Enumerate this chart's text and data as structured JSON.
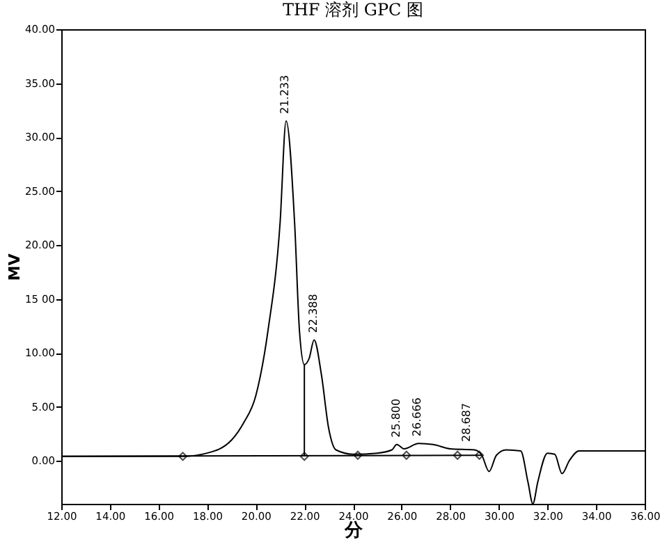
{
  "chart_data": {
    "type": "line",
    "title": "THF 溶剂 GPC 图",
    "xlabel": "分",
    "ylabel": "MV",
    "xlim": [
      12,
      36
    ],
    "ylim": [
      -4,
      40
    ],
    "xticks": [
      {
        "value": 12,
        "label": "12.00"
      },
      {
        "value": 14,
        "label": "14.00"
      },
      {
        "value": 16,
        "label": "16.00"
      },
      {
        "value": 18,
        "label": "18.00"
      },
      {
        "value": 20,
        "label": "20.00"
      },
      {
        "value": 22,
        "label": "22.00"
      },
      {
        "value": 24,
        "label": "24.00"
      },
      {
        "value": 26,
        "label": "26.00"
      },
      {
        "value": 28,
        "label": "28.00"
      },
      {
        "value": 30,
        "label": "30.00"
      },
      {
        "value": 32,
        "label": "32.00"
      },
      {
        "value": 34,
        "label": "34.00"
      },
      {
        "value": 36,
        "label": "36.00"
      }
    ],
    "yticks": [
      {
        "value": 0,
        "label": "0.00"
      },
      {
        "value": 5,
        "label": "5.00"
      },
      {
        "value": 10,
        "label": "10.00"
      },
      {
        "value": 15,
        "label": "15 00"
      },
      {
        "value": 20,
        "label": "20.00"
      },
      {
        "value": 25,
        "label": "25.00"
      },
      {
        "value": 30,
        "label": "30.00"
      },
      {
        "value": 35,
        "label": "35.00"
      },
      {
        "value": 40,
        "label": "40.00"
      }
    ],
    "grid": false,
    "series": [
      {
        "color": "#000000",
        "x": [
          12,
          17,
          18,
          19,
          19.5,
          20,
          20.5,
          21,
          21.25,
          21.6,
          21.8,
          22.0,
          22.2,
          22.4,
          22.7,
          23.0,
          23.3,
          24,
          25,
          25.6,
          25.8,
          26.1,
          26.7,
          27.3,
          28,
          29,
          29.3,
          29.6,
          29.9,
          30.3,
          30.9,
          31.2,
          31.4,
          31.6,
          32,
          32.3,
          32.6,
          32.9,
          33.3,
          36
        ],
        "values": [
          0.4,
          0.4,
          0.7,
          1.9,
          3.5,
          6,
          12,
          22,
          31.5,
          22,
          12,
          8.9,
          9.5,
          11.2,
          8,
          3,
          1,
          0.6,
          0.7,
          1,
          1.5,
          1.1,
          1.6,
          1.5,
          1.1,
          1.0,
          0.5,
          -1,
          0.5,
          1.0,
          0.9,
          -2,
          -4,
          -2,
          0.7,
          0.6,
          -1.2,
          0,
          0.9,
          0.9
        ]
      },
      {
        "type": "line",
        "color": "#000000",
        "x": [
          12,
          29.3
        ],
        "values": [
          0.4,
          0.5
        ]
      },
      {
        "type": "line",
        "color": "#000000",
        "x": [
          22,
          22
        ],
        "values": [
          0.4,
          8.9
        ]
      },
      {
        "type": "scatter",
        "color": "#000000",
        "marker": "diamond",
        "x": [
          17,
          22,
          24.2,
          26.2,
          28.3,
          29.2
        ],
        "values": [
          0.4,
          0.4,
          0.5,
          0.5,
          0.5,
          0.5
        ]
      }
    ],
    "annotations": [
      {
        "text": "21.233",
        "x": 21.233,
        "y": 31.5
      },
      {
        "text": "22.388",
        "x": 22.388,
        "y": 11.2
      },
      {
        "text": "25.800",
        "x": 25.8,
        "y": 1.5
      },
      {
        "text": "26.666",
        "x": 26.666,
        "y": 1.6
      },
      {
        "text": "28.687",
        "x": 28.687,
        "y": 1.1
      }
    ]
  }
}
